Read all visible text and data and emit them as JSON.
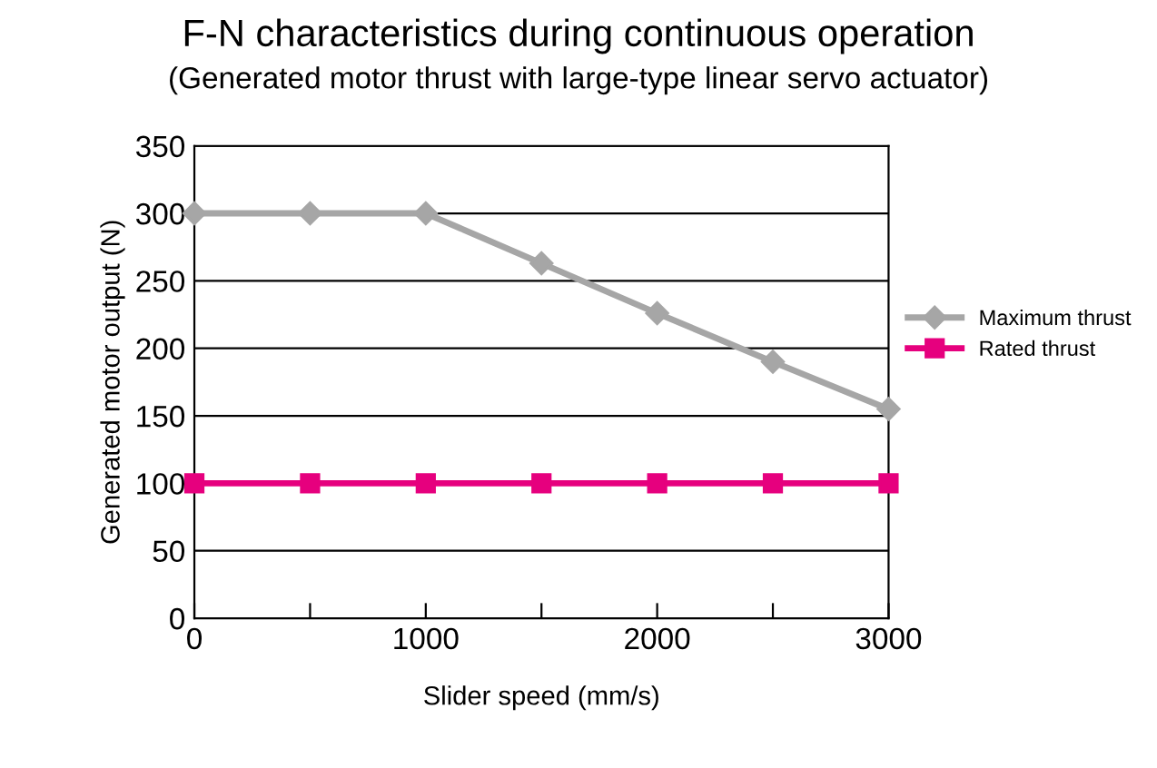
{
  "chart_data": {
    "type": "line",
    "title": "F-N characteristics during continuous operation",
    "subtitle": "(Generated motor thrust with large-type linear servo actuator)",
    "xlabel": "Slider speed (mm/s)",
    "ylabel": "Generated motor output (N)",
    "x": [
      0,
      500,
      1000,
      1500,
      2000,
      2500,
      3000
    ],
    "series": [
      {
        "name": "Maximum thrust",
        "color": "#a6a6a6",
        "marker": "diamond",
        "values": [
          300,
          300,
          300,
          263,
          226,
          190,
          155
        ]
      },
      {
        "name": "Rated thrust",
        "color": "#e6007e",
        "marker": "square",
        "values": [
          100,
          100,
          100,
          100,
          100,
          100,
          100
        ]
      }
    ],
    "xlim": [
      0,
      3000
    ],
    "xticks": [
      0,
      {
        "value": 500,
        "label": null
      },
      1000,
      {
        "value": 1500,
        "label": null
      },
      2000,
      {
        "value": 2500,
        "label": null
      },
      3000
    ],
    "ylim": [
      0,
      350
    ],
    "yticks": [
      0,
      50,
      100,
      150,
      200,
      250,
      300,
      350
    ],
    "grid": "y",
    "legend": "right"
  }
}
